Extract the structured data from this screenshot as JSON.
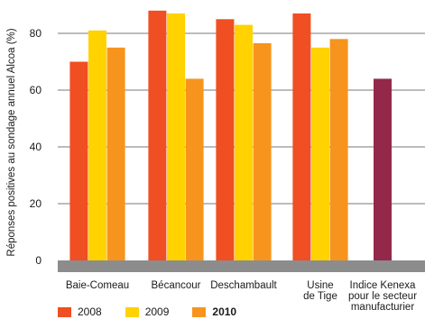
{
  "chart_data": {
    "type": "bar",
    "ylabel": "Réponses positives au sondage annuel Alcoa (%)",
    "xlabel": "",
    "ylim": [
      0,
      90
    ],
    "yticks": [
      0,
      20,
      40,
      60,
      80
    ],
    "grid": "horizontal",
    "categories": [
      [
        "Baie-Comeau"
      ],
      [
        "Bécancour"
      ],
      [
        "Deschambault"
      ],
      [
        "Usine",
        "de Tige"
      ],
      [
        "Indice Kenexa",
        "pour le secteur",
        "manufacturier"
      ]
    ],
    "series": [
      {
        "name": "2008",
        "color": "#f04e23",
        "values": [
          70,
          88,
          85,
          87,
          null
        ]
      },
      {
        "name": "2009",
        "color": "#ffd200",
        "values": [
          81,
          87,
          83,
          75,
          null
        ]
      },
      {
        "name": "2010",
        "color": "#f7941d",
        "values": [
          75,
          64,
          76.5,
          78,
          null
        ]
      }
    ],
    "benchmark": {
      "category_index": 4,
      "color": "#93284b",
      "value": 64
    },
    "legend": {
      "position": "bottom-left",
      "bold": [
        "2010"
      ]
    }
  }
}
